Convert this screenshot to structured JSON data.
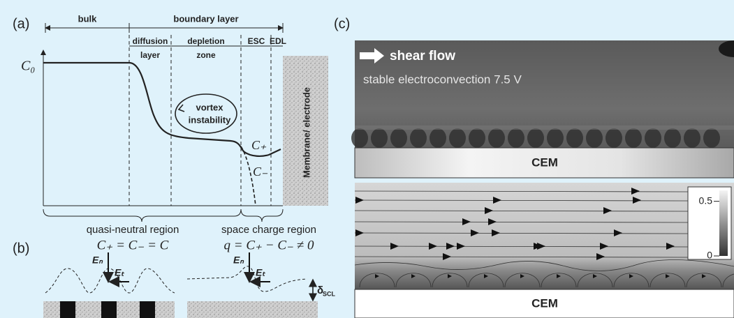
{
  "panel_a": {
    "label": "(a)",
    "bulk": "bulk",
    "boundary_layer": "boundary layer",
    "diffusion": "diffusion",
    "layer": "layer",
    "depletion": "depletion",
    "zone": "zone",
    "esc": "ESC",
    "edl": "EDL",
    "c0": "C₀",
    "vortex": "vortex",
    "instability": "instability",
    "c_plus": "C₊",
    "c_minus": "C₋",
    "membrane": "Membrane/ electrode",
    "quasi_neutral": "quasi-neutral region",
    "quasi_eq": "C₊ = C₋ = C",
    "space_charge": "space charge region",
    "space_eq": "q = C₊ − C₋ ≠ 0"
  },
  "panel_b": {
    "label": "(b)",
    "en_left": "Eₙ",
    "et_left": "Eₜ",
    "en_right": "Eₙ",
    "et_right": "Eₜ",
    "delta": "δ",
    "delta_sub": "SCL"
  },
  "panel_c": {
    "label": "(c)",
    "shear_flow": "shear flow",
    "condition": "stable electroconvection 7.5 V",
    "cem_top": "CEM",
    "cem_bottom": "CEM",
    "colorbar_lim": [
      0,
      0.6
    ],
    "colorbar_ticks": [
      0.5,
      0
    ]
  }
}
